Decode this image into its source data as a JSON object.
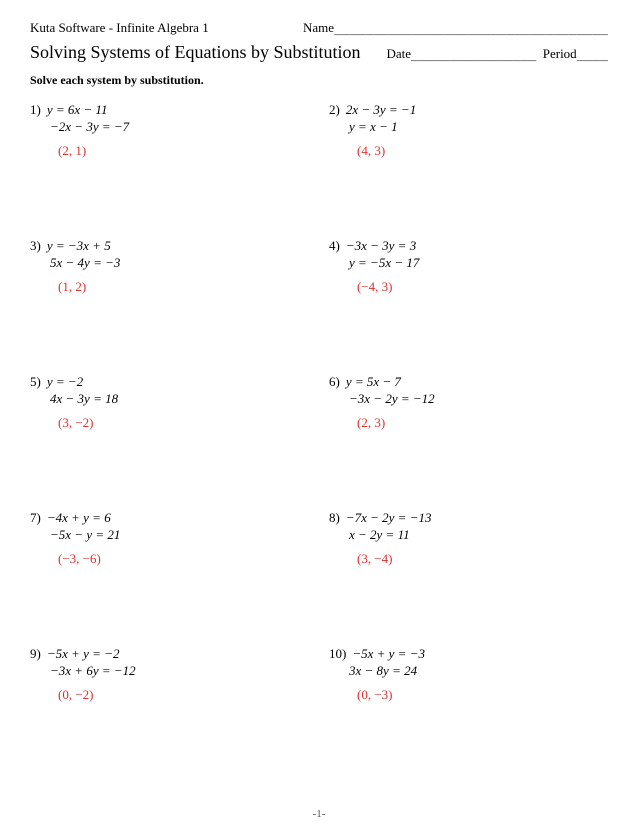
{
  "header": {
    "software": "Kuta Software - Infinite Algebra 1",
    "name_label": "Name",
    "name_blank": "___________________________________"
  },
  "title_row": {
    "title": "Solving Systems of Equations by Substitution",
    "date_label": "Date",
    "date_blank": "________________",
    "period_label": "Period",
    "period_blank": "____"
  },
  "instruction": "Solve each system by substitution.",
  "problems": [
    {
      "n": "1)",
      "eq1": "y = 6x − 11",
      "eq2": "−2x − 3y = −7",
      "ans": "(2, 1)"
    },
    {
      "n": "2)",
      "eq1": "2x − 3y = −1",
      "eq2": "y = x − 1",
      "ans": "(4, 3)"
    },
    {
      "n": "3)",
      "eq1": "y = −3x + 5",
      "eq2": "5x − 4y = −3",
      "ans": "(1, 2)"
    },
    {
      "n": "4)",
      "eq1": "−3x − 3y = 3",
      "eq2": "y = −5x − 17",
      "ans": "(−4, 3)"
    },
    {
      "n": "5)",
      "eq1": "y = −2",
      "eq2": "4x − 3y = 18",
      "ans": "(3, −2)"
    },
    {
      "n": "6)",
      "eq1": "y = 5x − 7",
      "eq2": "−3x − 2y = −12",
      "ans": "(2, 3)"
    },
    {
      "n": "7)",
      "eq1": "−4x + y = 6",
      "eq2": "−5x − y = 21",
      "ans": "(−3, −6)"
    },
    {
      "n": "8)",
      "eq1": "−7x − 2y = −13",
      "eq2": "x − 2y = 11",
      "ans": "(3, −4)"
    },
    {
      "n": "9)",
      "eq1": "−5x + y = −2",
      "eq2": "−3x + 6y = −12",
      "ans": "(0, −2)"
    },
    {
      "n": "10)",
      "eq1": "−5x + y = −3",
      "eq2": "3x − 8y = 24",
      "ans": "(0, −3)"
    }
  ],
  "footer": "-1-",
  "colors": {
    "answer": "#e03030",
    "text": "#000000",
    "background": "#ffffff"
  }
}
